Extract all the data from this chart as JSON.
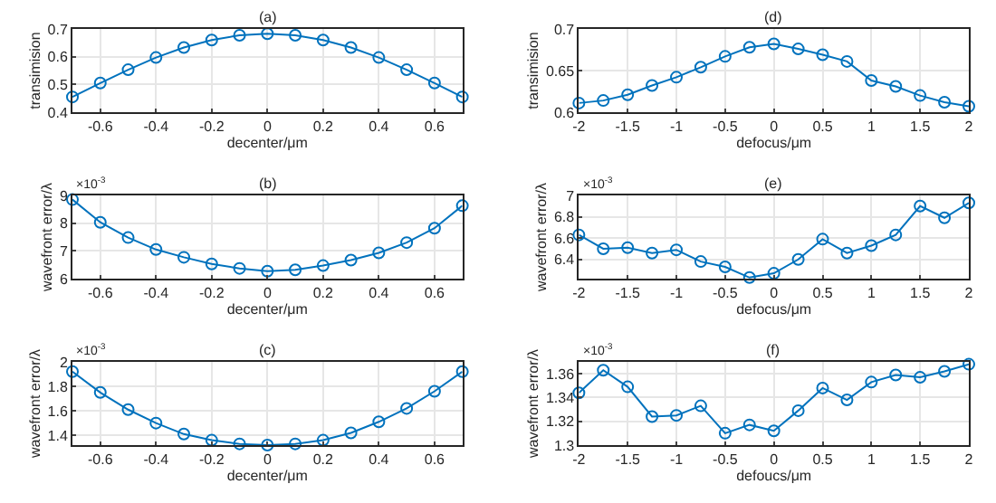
{
  "chart_data": [
    {
      "type": "line",
      "title": "(a)",
      "xlabel": "decenter/μm",
      "ylabel": "transimision",
      "x": [
        -0.7,
        -0.6,
        -0.5,
        -0.4,
        -0.3,
        -0.2,
        -0.1,
        0,
        0.1,
        0.2,
        0.3,
        0.4,
        0.5,
        0.6,
        0.7
      ],
      "series": [
        {
          "color": "#0072bd",
          "values": [
            0.455,
            0.505,
            0.553,
            0.597,
            0.633,
            0.66,
            0.677,
            0.683,
            0.677,
            0.66,
            0.633,
            0.597,
            0.553,
            0.505,
            0.455
          ]
        }
      ],
      "xlim": [
        -0.7,
        0.7
      ],
      "xticks": [
        -0.6,
        -0.4,
        -0.2,
        0,
        0.2,
        0.4,
        0.6
      ],
      "ylim": [
        0.4,
        0.7
      ],
      "yticks": [
        0.4,
        0.5,
        0.6,
        0.7
      ],
      "grid": true,
      "marker": "circle"
    },
    {
      "type": "line",
      "title": "(d)",
      "xlabel": "defocus/μm",
      "ylabel": "transimision",
      "x": [
        -2,
        -1.75,
        -1.5,
        -1.25,
        -1,
        -0.75,
        -0.5,
        -0.25,
        0,
        0.25,
        0.5,
        0.75,
        1,
        1.25,
        1.5,
        1.75,
        2
      ],
      "series": [
        {
          "color": "#0072bd",
          "values": [
            0.611,
            0.614,
            0.621,
            0.632,
            0.642,
            0.654,
            0.667,
            0.678,
            0.682,
            0.676,
            0.669,
            0.661,
            0.638,
            0.631,
            0.62,
            0.612,
            0.607
          ]
        }
      ],
      "xlim": [
        -2,
        2
      ],
      "xticks": [
        -2,
        -1.5,
        -1,
        -0.5,
        0,
        0.5,
        1,
        1.5,
        2
      ],
      "ylim": [
        0.6,
        0.7
      ],
      "yticks": [
        0.6,
        0.65,
        0.7
      ],
      "grid": true,
      "marker": "circle"
    },
    {
      "type": "line",
      "title": "(b)",
      "xlabel": "decenter/μm",
      "ylabel": "wavefront error/λ",
      "annotations": [
        "×10$^{-3}$"
      ],
      "x": [
        -0.7,
        -0.6,
        -0.5,
        -0.4,
        -0.3,
        -0.2,
        -0.1,
        0,
        0.1,
        0.2,
        0.3,
        0.4,
        0.5,
        0.6,
        0.7
      ],
      "series": [
        {
          "color": "#0072bd",
          "values": [
            8.85,
            8.03,
            7.48,
            7.05,
            6.77,
            6.53,
            6.37,
            6.27,
            6.32,
            6.47,
            6.67,
            6.93,
            7.3,
            7.82,
            8.63
          ]
        }
      ],
      "xlim": [
        -0.7,
        0.7
      ],
      "xticks": [
        -0.6,
        -0.4,
        -0.2,
        0,
        0.2,
        0.4,
        0.6
      ],
      "ylim": [
        6,
        9
      ],
      "yticks": [
        6,
        7,
        8,
        9
      ],
      "grid": true,
      "marker": "circle"
    },
    {
      "type": "line",
      "title": "(e)",
      "xlabel": "defocus/μm",
      "ylabel": "wavefront error/λ",
      "annotations": [
        "×10$^{-3}$"
      ],
      "x": [
        -2,
        -1.75,
        -1.5,
        -1.25,
        -1,
        -0.75,
        -0.5,
        -0.25,
        0,
        0.25,
        0.5,
        0.75,
        1,
        1.25,
        1.5,
        1.75,
        2
      ],
      "series": [
        {
          "color": "#0072bd",
          "values": [
            6.63,
            6.5,
            6.51,
            6.46,
            6.49,
            6.38,
            6.33,
            6.23,
            6.27,
            6.4,
            6.59,
            6.46,
            6.53,
            6.63,
            6.9,
            6.79,
            6.93
          ]
        }
      ],
      "xlim": [
        -2,
        2
      ],
      "xticks": [
        -2,
        -1.5,
        -1,
        -0.5,
        0,
        0.5,
        1,
        1.5,
        2
      ],
      "ylim": [
        6.22,
        7
      ],
      "yticks": [
        6.4,
        6.6,
        6.8,
        7
      ],
      "grid": true,
      "marker": "circle"
    },
    {
      "type": "line",
      "title": "(c)",
      "xlabel": "decenter/μm",
      "ylabel": "wavefront error/λ",
      "annotations": [
        "×10$^{-3}$"
      ],
      "x": [
        -0.7,
        -0.6,
        -0.5,
        -0.4,
        -0.3,
        -0.2,
        -0.1,
        0,
        0.1,
        0.2,
        0.3,
        0.4,
        0.5,
        0.6,
        0.7
      ],
      "series": [
        {
          "color": "#0072bd",
          "values": [
            1.92,
            1.75,
            1.61,
            1.5,
            1.41,
            1.36,
            1.33,
            1.32,
            1.33,
            1.36,
            1.42,
            1.51,
            1.62,
            1.76,
            1.92
          ]
        }
      ],
      "xlim": [
        -0.7,
        0.7
      ],
      "xticks": [
        -0.6,
        -0.4,
        -0.2,
        0,
        0.2,
        0.4,
        0.6
      ],
      "ylim": [
        1.32,
        2
      ],
      "yticks": [
        1.4,
        1.6,
        1.8,
        2
      ],
      "grid": true,
      "marker": "circle"
    },
    {
      "type": "line",
      "title": "(f)",
      "xlabel": "defoucs/μm",
      "ylabel": "wavefront error/λ",
      "annotations": [
        "×10$^{-3}$"
      ],
      "x": [
        -2,
        -1.75,
        -1.5,
        -1.25,
        -1,
        -0.75,
        -0.5,
        -0.25,
        0,
        0.25,
        0.5,
        0.75,
        1,
        1.25,
        1.5,
        1.75,
        2
      ],
      "series": [
        {
          "color": "#0072bd",
          "values": [
            1.344,
            1.363,
            1.349,
            1.324,
            1.325,
            1.333,
            1.31,
            1.317,
            1.312,
            1.329,
            1.348,
            1.338,
            1.353,
            1.359,
            1.357,
            1.362,
            1.368
          ]
        }
      ],
      "xlim": [
        -2,
        2
      ],
      "xticks": [
        -2,
        -1.5,
        -1,
        -0.5,
        0,
        0.5,
        1,
        1.5,
        2
      ],
      "ylim": [
        1.3,
        1.37
      ],
      "yticks": [
        1.3,
        1.32,
        1.34,
        1.36
      ],
      "grid": true,
      "marker": "circle"
    }
  ]
}
